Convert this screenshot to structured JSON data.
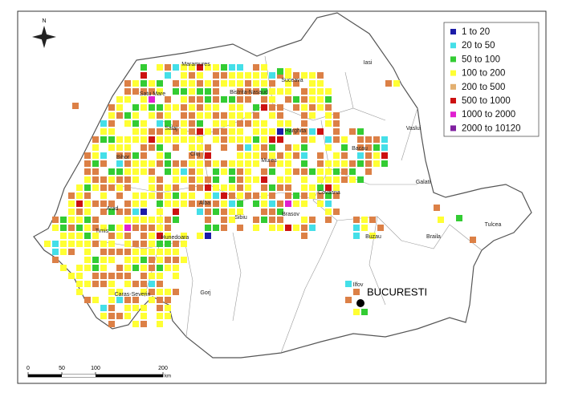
{
  "north": "N",
  "legend": {
    "items": [
      {
        "label": "1  to  20",
        "color": "#1c1ca8"
      },
      {
        "label": "20  to  50",
        "color": "#44dfe8"
      },
      {
        "label": "50  to  100",
        "color": "#33cc33"
      },
      {
        "label": "100  to  200",
        "color": "#ffff33"
      },
      {
        "label": "200  to  500",
        "color": "#e3b070"
      },
      {
        "label": "500  to  1000",
        "color": "#cc1111"
      },
      {
        "label": "1000  to  2000",
        "color": "#e020d0"
      },
      {
        "label": "2000  to  10120",
        "color": "#8020a0"
      }
    ]
  },
  "cell_color": "#dc8046",
  "counties": [
    "Suceava",
    "Iasi",
    "Maramures",
    "Satu Mare",
    "Bistrita-Nasaud",
    "Vaslui",
    "Salaj",
    "Bihor",
    "Cluj",
    "Mures",
    "Harghita",
    "Bacau",
    "Galati",
    "Arad",
    "Alba",
    "Sibiu",
    "Brasov",
    "Covasna",
    "Hunedoara",
    "Buzau",
    "Braila",
    "Tulcea",
    "Timis",
    "Caras-Severin",
    "Gorj",
    "Ilfov"
  ],
  "capital": "BUCURESTI",
  "scale": {
    "ticks": [
      0,
      50,
      100,
      200
    ],
    "unit": "km"
  }
}
